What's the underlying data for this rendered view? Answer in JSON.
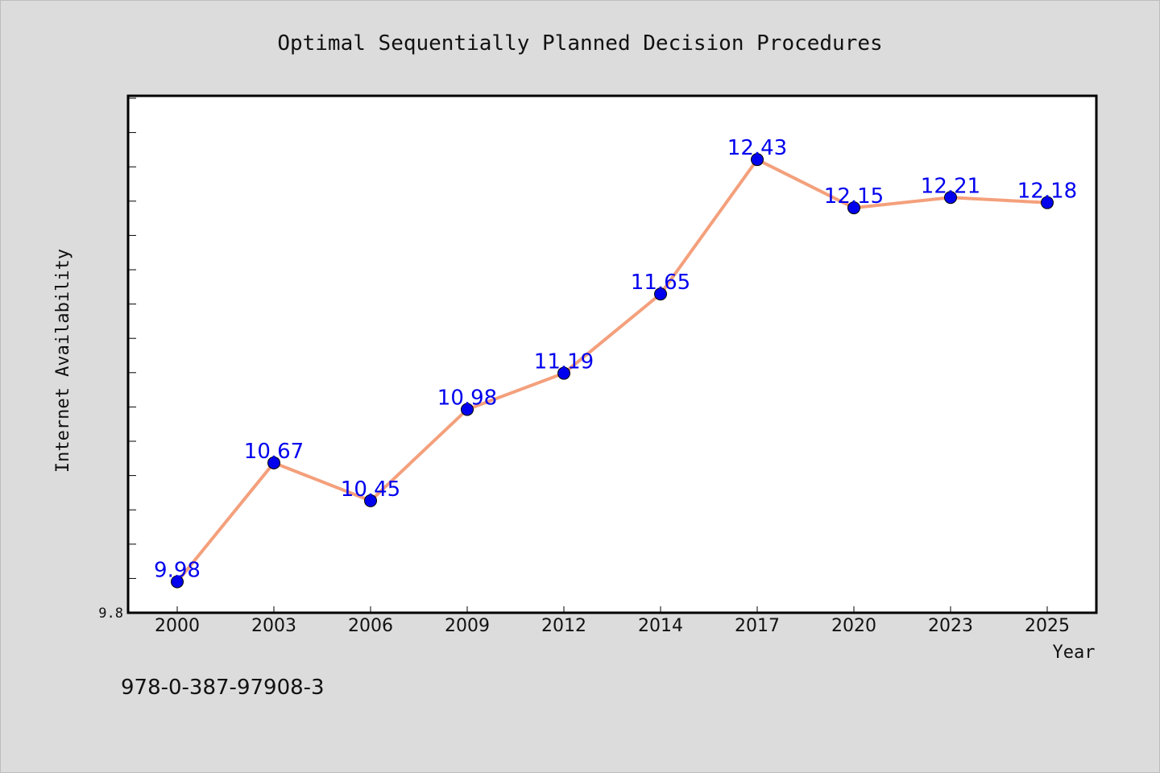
{
  "caption": "978-0-387-97908-3",
  "chart_data": {
    "type": "line",
    "title": "Optimal Sequentially Planned Decision Procedures",
    "xlabel": "Year",
    "ylabel": "Internet Availability",
    "categories": [
      "2000",
      "2003",
      "2006",
      "2009",
      "2012",
      "2014",
      "2017",
      "2020",
      "2023",
      "2025"
    ],
    "values": [
      9.98,
      10.67,
      10.45,
      10.98,
      11.19,
      11.65,
      12.43,
      12.15,
      12.21,
      12.18
    ],
    "ylim": [
      9.8,
      12.8
    ],
    "y_tick_labels": [
      "9.8"
    ],
    "line_color": "#f4a07c",
    "marker_color": "#0000ee",
    "label_color": "#0000ee",
    "grid": false,
    "data_labels": true
  }
}
